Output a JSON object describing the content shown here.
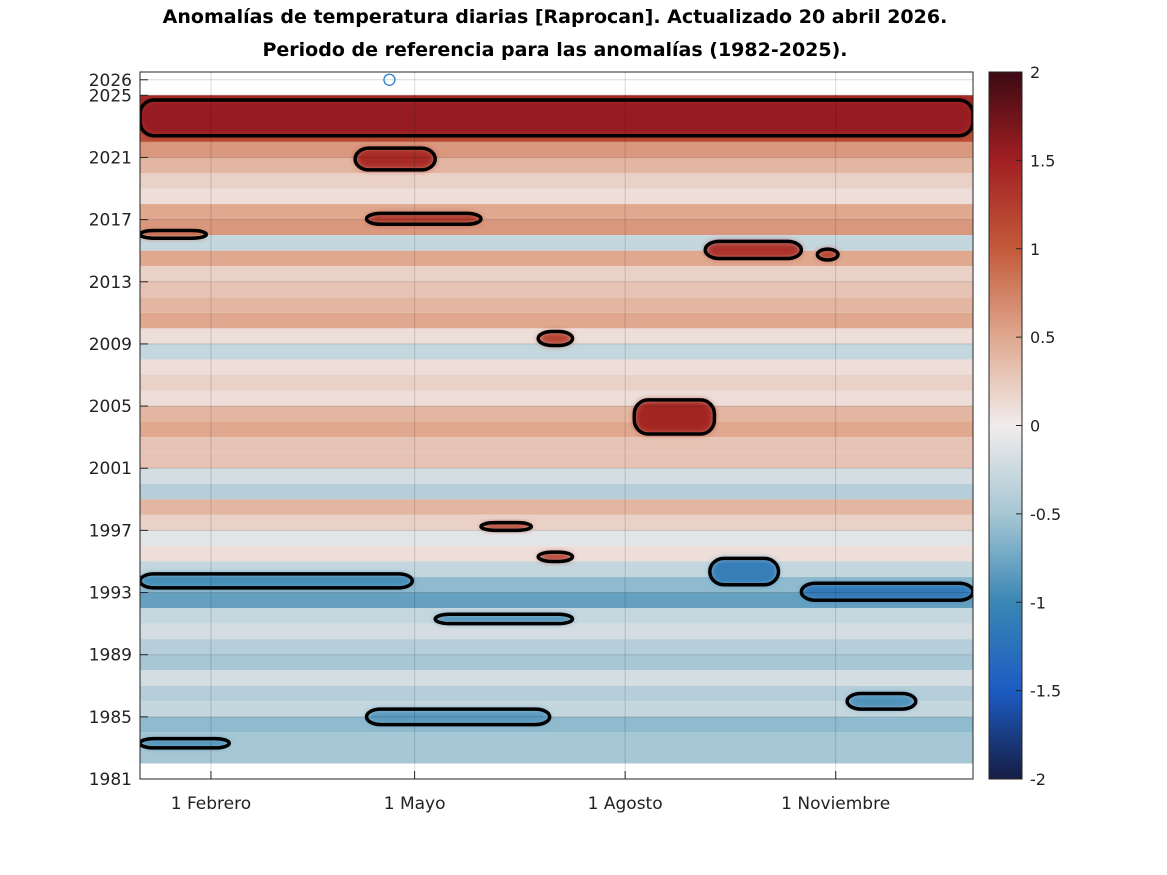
{
  "chart_data": {
    "type": "heatmap",
    "title": "Anomalías de temperatura diarias [Raprocan]. Actualizado 20 abril 2026.",
    "subtitle": "Periodo de referencia para las anomalías (1982-2025).",
    "xlabel": "",
    "ylabel": "",
    "x_ticks": [
      "1 Febrero",
      "1 Mayo",
      "1 Agosto",
      "1 Noviembre"
    ],
    "x_tick_day_of_year": [
      32,
      121,
      213,
      305
    ],
    "xlim_day_of_year": [
      1,
      365
    ],
    "y_ticks": [
      1981,
      1985,
      1989,
      1993,
      1997,
      2001,
      2005,
      2009,
      2013,
      2017,
      2021,
      2025,
      2026
    ],
    "ylim": [
      1981,
      2026.5
    ],
    "grid": true,
    "colorbar": {
      "range": [
        -2,
        2
      ],
      "ticks": [
        "2",
        "1.5",
        "1",
        "0.5",
        "0",
        "-0.5",
        "-1",
        "-1.5",
        "-2"
      ],
      "colors": [
        "#151d44",
        "#1c5cc2",
        "#3a86b4",
        "#a6c7d4",
        "#f1ecec",
        "#dfa88f",
        "#c35a3a",
        "#a11f22",
        "#3c0912"
      ]
    },
    "contour_levels": [
      -1,
      1
    ],
    "bands": [
      {
        "year": 2024.5,
        "anomaly": 1.4
      },
      {
        "year": 2023.5,
        "anomaly": 1.5
      },
      {
        "year": 2022.5,
        "anomaly": 1.1
      },
      {
        "year": 2021.5,
        "anomaly": 0.6
      },
      {
        "year": 2020.5,
        "anomaly": 0.4
      },
      {
        "year": 2019.5,
        "anomaly": 0.2
      },
      {
        "year": 2018.5,
        "anomaly": 0.1
      },
      {
        "year": 2017.5,
        "anomaly": 0.5
      },
      {
        "year": 2016.5,
        "anomaly": 0.6
      },
      {
        "year": 2015.5,
        "anomaly": -0.3
      },
      {
        "year": 2014.5,
        "anomaly": 0.5
      },
      {
        "year": 2013.5,
        "anomaly": 0.2
      },
      {
        "year": 2012.5,
        "anomaly": 0.3
      },
      {
        "year": 2011.5,
        "anomaly": 0.4
      },
      {
        "year": 2010.5,
        "anomaly": 0.5
      },
      {
        "year": 2009.5,
        "anomaly": 0.1
      },
      {
        "year": 2008.5,
        "anomaly": -0.3
      },
      {
        "year": 2007.5,
        "anomaly": 0.1
      },
      {
        "year": 2006.5,
        "anomaly": 0.2
      },
      {
        "year": 2005.5,
        "anomaly": 0.1
      },
      {
        "year": 2004.5,
        "anomaly": 0.4
      },
      {
        "year": 2003.5,
        "anomaly": 0.5
      },
      {
        "year": 2002.5,
        "anomaly": 0.3
      },
      {
        "year": 2001.5,
        "anomaly": 0.3
      },
      {
        "year": 2000.5,
        "anomaly": -0.2
      },
      {
        "year": 1999.5,
        "anomaly": -0.4
      },
      {
        "year": 1998.5,
        "anomaly": 0.4
      },
      {
        "year": 1997.5,
        "anomaly": 0.2
      },
      {
        "year": 1996.5,
        "anomaly": -0.1
      },
      {
        "year": 1995.5,
        "anomaly": 0.1
      },
      {
        "year": 1994.5,
        "anomaly": -0.3
      },
      {
        "year": 1993.5,
        "anomaly": -0.6
      },
      {
        "year": 1992.5,
        "anomaly": -0.8
      },
      {
        "year": 1991.5,
        "anomaly": -0.3
      },
      {
        "year": 1990.5,
        "anomaly": -0.2
      },
      {
        "year": 1989.5,
        "anomaly": -0.4
      },
      {
        "year": 1988.5,
        "anomaly": -0.5
      },
      {
        "year": 1987.5,
        "anomaly": -0.2
      },
      {
        "year": 1986.5,
        "anomaly": -0.4
      },
      {
        "year": 1985.5,
        "anomaly": -0.3
      },
      {
        "year": 1984.5,
        "anomaly": -0.6
      },
      {
        "year": 1983.5,
        "anomaly": -0.5
      },
      {
        "year": 1982.5,
        "anomaly": -0.5
      }
    ],
    "blobs": [
      {
        "x0": 1,
        "x1": 365,
        "y0": 2022.4,
        "y1": 2024.7,
        "anomaly": 1.55
      },
      {
        "x0": 95,
        "x1": 130,
        "y0": 2020.2,
        "y1": 2021.6,
        "anomaly": 1.4
      },
      {
        "x0": 100,
        "x1": 150,
        "y0": 2016.7,
        "y1": 2017.4,
        "anomaly": 1.3
      },
      {
        "x0": 248,
        "x1": 290,
        "y0": 2014.5,
        "y1": 2015.6,
        "anomaly": 1.35
      },
      {
        "x0": 297,
        "x1": 306,
        "y0": 2014.4,
        "y1": 2015.1,
        "anomaly": 1.2
      },
      {
        "x0": 217,
        "x1": 252,
        "y0": 2003.2,
        "y1": 2005.4,
        "anomaly": 1.45
      },
      {
        "x0": 175,
        "x1": 190,
        "y0": 1995.0,
        "y1": 1995.6,
        "anomaly": 1.2
      },
      {
        "x0": 150,
        "x1": 172,
        "y0": 1997.0,
        "y1": 1997.5,
        "anomaly": 1.2
      },
      {
        "x0": 175,
        "x1": 190,
        "y0": 2008.9,
        "y1": 2009.8,
        "anomaly": 1.2
      },
      {
        "x0": 1,
        "x1": 30,
        "y0": 2015.8,
        "y1": 2016.3,
        "anomaly": 0.9
      },
      {
        "x0": 290,
        "x1": 365,
        "y0": 1992.5,
        "y1": 1993.6,
        "anomaly": -1.15
      },
      {
        "x0": 1,
        "x1": 120,
        "y0": 1993.3,
        "y1": 1994.2,
        "anomaly": -0.95
      },
      {
        "x0": 130,
        "x1": 190,
        "y0": 1991.0,
        "y1": 1991.6,
        "anomaly": -0.9
      },
      {
        "x0": 250,
        "x1": 280,
        "y0": 1993.5,
        "y1": 1995.2,
        "anomaly": -1.1
      },
      {
        "x0": 100,
        "x1": 180,
        "y0": 1984.5,
        "y1": 1985.5,
        "anomaly": -0.85
      },
      {
        "x0": 1,
        "x1": 40,
        "y0": 1983.0,
        "y1": 1983.6,
        "anomaly": -0.9
      },
      {
        "x0": 310,
        "x1": 340,
        "y0": 1985.5,
        "y1": 1986.5,
        "anomaly": -0.9
      }
    ],
    "marker": {
      "day_of_year": 110,
      "year": 2026
    }
  }
}
